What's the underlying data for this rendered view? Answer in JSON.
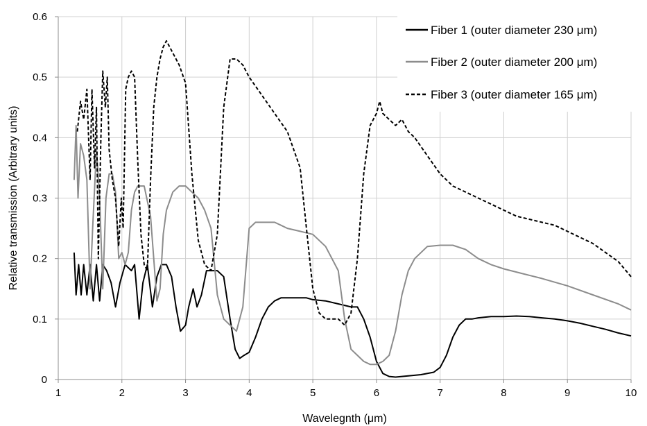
{
  "chart_data": {
    "type": "line",
    "xlabel": "Wavelegnth (μm)",
    "ylabel": "Relative transmission (Arbitrary units)",
    "xlim": [
      1,
      10
    ],
    "ylim": [
      0,
      0.6
    ],
    "x_ticks": [
      1,
      2,
      3,
      4,
      5,
      6,
      7,
      8,
      9,
      10
    ],
    "y_ticks": [
      0,
      0.1,
      0.2,
      0.3,
      0.4,
      0.5,
      0.6
    ],
    "x_tick_labels": [
      "1",
      "2",
      "3",
      "4",
      "5",
      "6",
      "7",
      "8",
      "9",
      "10"
    ],
    "y_tick_labels": [
      "0",
      "0.1",
      "0.2",
      "0.3",
      "0.4",
      "0.5",
      "0.6"
    ],
    "grid": true,
    "legend_position": "top-right",
    "series": [
      {
        "name": "Fiber 1 (outer diameter 230 μm)",
        "color": "#000000",
        "style": "solid",
        "x": [
          1.25,
          1.28,
          1.32,
          1.36,
          1.4,
          1.45,
          1.5,
          1.55,
          1.6,
          1.65,
          1.7,
          1.76,
          1.83,
          1.9,
          1.97,
          2.05,
          2.15,
          2.2,
          2.27,
          2.33,
          2.4,
          2.48,
          2.55,
          2.62,
          2.7,
          2.78,
          2.85,
          2.92,
          3.0,
          3.05,
          3.12,
          3.18,
          3.25,
          3.33,
          3.4,
          3.5,
          3.6,
          3.7,
          3.78,
          3.85,
          3.92,
          4.0,
          4.1,
          4.2,
          4.3,
          4.4,
          4.5,
          4.6,
          4.7,
          4.8,
          4.9,
          5.0,
          5.2,
          5.4,
          5.6,
          5.7,
          5.8,
          5.9,
          6.0,
          6.1,
          6.2,
          6.3,
          6.4,
          6.5,
          6.7,
          6.9,
          7.0,
          7.1,
          7.2,
          7.3,
          7.4,
          7.5,
          7.6,
          7.8,
          8.0,
          8.2,
          8.4,
          8.6,
          8.8,
          9.0,
          9.2,
          9.4,
          9.6,
          9.8,
          10.0
        ],
        "values": [
          0.21,
          0.14,
          0.19,
          0.14,
          0.19,
          0.14,
          0.19,
          0.13,
          0.19,
          0.13,
          0.19,
          0.18,
          0.16,
          0.12,
          0.16,
          0.19,
          0.18,
          0.19,
          0.1,
          0.16,
          0.19,
          0.12,
          0.17,
          0.19,
          0.19,
          0.17,
          0.12,
          0.08,
          0.09,
          0.12,
          0.15,
          0.12,
          0.14,
          0.18,
          0.18,
          0.18,
          0.17,
          0.1,
          0.05,
          0.035,
          0.04,
          0.045,
          0.07,
          0.1,
          0.12,
          0.13,
          0.135,
          0.135,
          0.135,
          0.135,
          0.135,
          0.132,
          0.13,
          0.125,
          0.12,
          0.12,
          0.1,
          0.07,
          0.03,
          0.01,
          0.005,
          0.004,
          0.005,
          0.006,
          0.008,
          0.012,
          0.02,
          0.04,
          0.07,
          0.09,
          0.1,
          0.1,
          0.102,
          0.104,
          0.104,
          0.105,
          0.104,
          0.102,
          0.1,
          0.097,
          0.093,
          0.088,
          0.083,
          0.077,
          0.072
        ]
      },
      {
        "name": "Fiber 2 (outer diameter 200 μm)",
        "color": "#8c8c8c",
        "style": "solid",
        "x": [
          1.25,
          1.28,
          1.31,
          1.35,
          1.4,
          1.45,
          1.5,
          1.54,
          1.6,
          1.65,
          1.7,
          1.75,
          1.8,
          1.85,
          1.9,
          1.95,
          2.0,
          2.05,
          2.1,
          2.15,
          2.2,
          2.25,
          2.35,
          2.45,
          2.55,
          2.6,
          2.65,
          2.7,
          2.8,
          2.9,
          3.0,
          3.1,
          3.2,
          3.3,
          3.4,
          3.5,
          3.6,
          3.7,
          3.8,
          3.9,
          4.0,
          4.1,
          4.2,
          4.3,
          4.4,
          4.5,
          4.6,
          4.8,
          5.0,
          5.2,
          5.4,
          5.5,
          5.6,
          5.7,
          5.8,
          5.9,
          6.0,
          6.1,
          6.2,
          6.3,
          6.4,
          6.5,
          6.6,
          6.8,
          7.0,
          7.2,
          7.4,
          7.6,
          7.8,
          8.0,
          8.3,
          8.6,
          9.0,
          9.4,
          9.8,
          10.0
        ],
        "values": [
          0.33,
          0.42,
          0.3,
          0.39,
          0.37,
          0.33,
          0.15,
          0.25,
          0.38,
          0.3,
          0.15,
          0.3,
          0.34,
          0.34,
          0.31,
          0.2,
          0.21,
          0.19,
          0.21,
          0.28,
          0.31,
          0.32,
          0.32,
          0.27,
          0.13,
          0.15,
          0.24,
          0.28,
          0.31,
          0.32,
          0.32,
          0.31,
          0.3,
          0.28,
          0.25,
          0.14,
          0.1,
          0.09,
          0.08,
          0.12,
          0.25,
          0.26,
          0.26,
          0.26,
          0.26,
          0.255,
          0.25,
          0.245,
          0.24,
          0.22,
          0.18,
          0.1,
          0.05,
          0.04,
          0.03,
          0.025,
          0.025,
          0.03,
          0.04,
          0.08,
          0.14,
          0.18,
          0.2,
          0.22,
          0.222,
          0.222,
          0.215,
          0.2,
          0.19,
          0.183,
          0.175,
          0.167,
          0.155,
          0.14,
          0.125,
          0.115
        ]
      },
      {
        "name": "Fiber 3 (outer diameter 165 μm)",
        "color": "#000000",
        "style": "dashed",
        "x": [
          1.3,
          1.35,
          1.4,
          1.45,
          1.5,
          1.53,
          1.57,
          1.6,
          1.63,
          1.67,
          1.7,
          1.74,
          1.77,
          1.8,
          1.85,
          1.9,
          1.95,
          1.99,
          2.02,
          2.06,
          2.1,
          2.15,
          2.2,
          2.25,
          2.3,
          2.35,
          2.4,
          2.45,
          2.5,
          2.55,
          2.6,
          2.65,
          2.7,
          2.8,
          2.9,
          3.0,
          3.1,
          3.2,
          3.3,
          3.4,
          3.5,
          3.6,
          3.7,
          3.8,
          3.9,
          4.0,
          4.2,
          4.4,
          4.6,
          4.8,
          4.9,
          5.0,
          5.1,
          5.2,
          5.3,
          5.4,
          5.5,
          5.6,
          5.7,
          5.8,
          5.9,
          6.0,
          6.05,
          6.1,
          6.2,
          6.3,
          6.4,
          6.5,
          6.6,
          6.8,
          7.0,
          7.2,
          7.4,
          7.6,
          7.8,
          8.0,
          8.2,
          8.4,
          8.6,
          8.8,
          9.0,
          9.2,
          9.4,
          9.6,
          9.8,
          10.0
        ],
        "values": [
          0.41,
          0.46,
          0.43,
          0.48,
          0.33,
          0.48,
          0.35,
          0.45,
          0.2,
          0.4,
          0.51,
          0.45,
          0.5,
          0.38,
          0.33,
          0.3,
          0.22,
          0.3,
          0.25,
          0.48,
          0.5,
          0.51,
          0.5,
          0.36,
          0.24,
          0.19,
          0.18,
          0.33,
          0.45,
          0.5,
          0.53,
          0.55,
          0.56,
          0.54,
          0.52,
          0.49,
          0.34,
          0.23,
          0.19,
          0.18,
          0.24,
          0.45,
          0.53,
          0.53,
          0.52,
          0.5,
          0.47,
          0.44,
          0.41,
          0.35,
          0.25,
          0.15,
          0.11,
          0.1,
          0.1,
          0.1,
          0.09,
          0.11,
          0.2,
          0.34,
          0.42,
          0.44,
          0.46,
          0.44,
          0.43,
          0.42,
          0.43,
          0.41,
          0.4,
          0.37,
          0.34,
          0.32,
          0.31,
          0.3,
          0.29,
          0.28,
          0.27,
          0.265,
          0.26,
          0.255,
          0.245,
          0.235,
          0.225,
          0.21,
          0.195,
          0.17
        ]
      }
    ]
  }
}
